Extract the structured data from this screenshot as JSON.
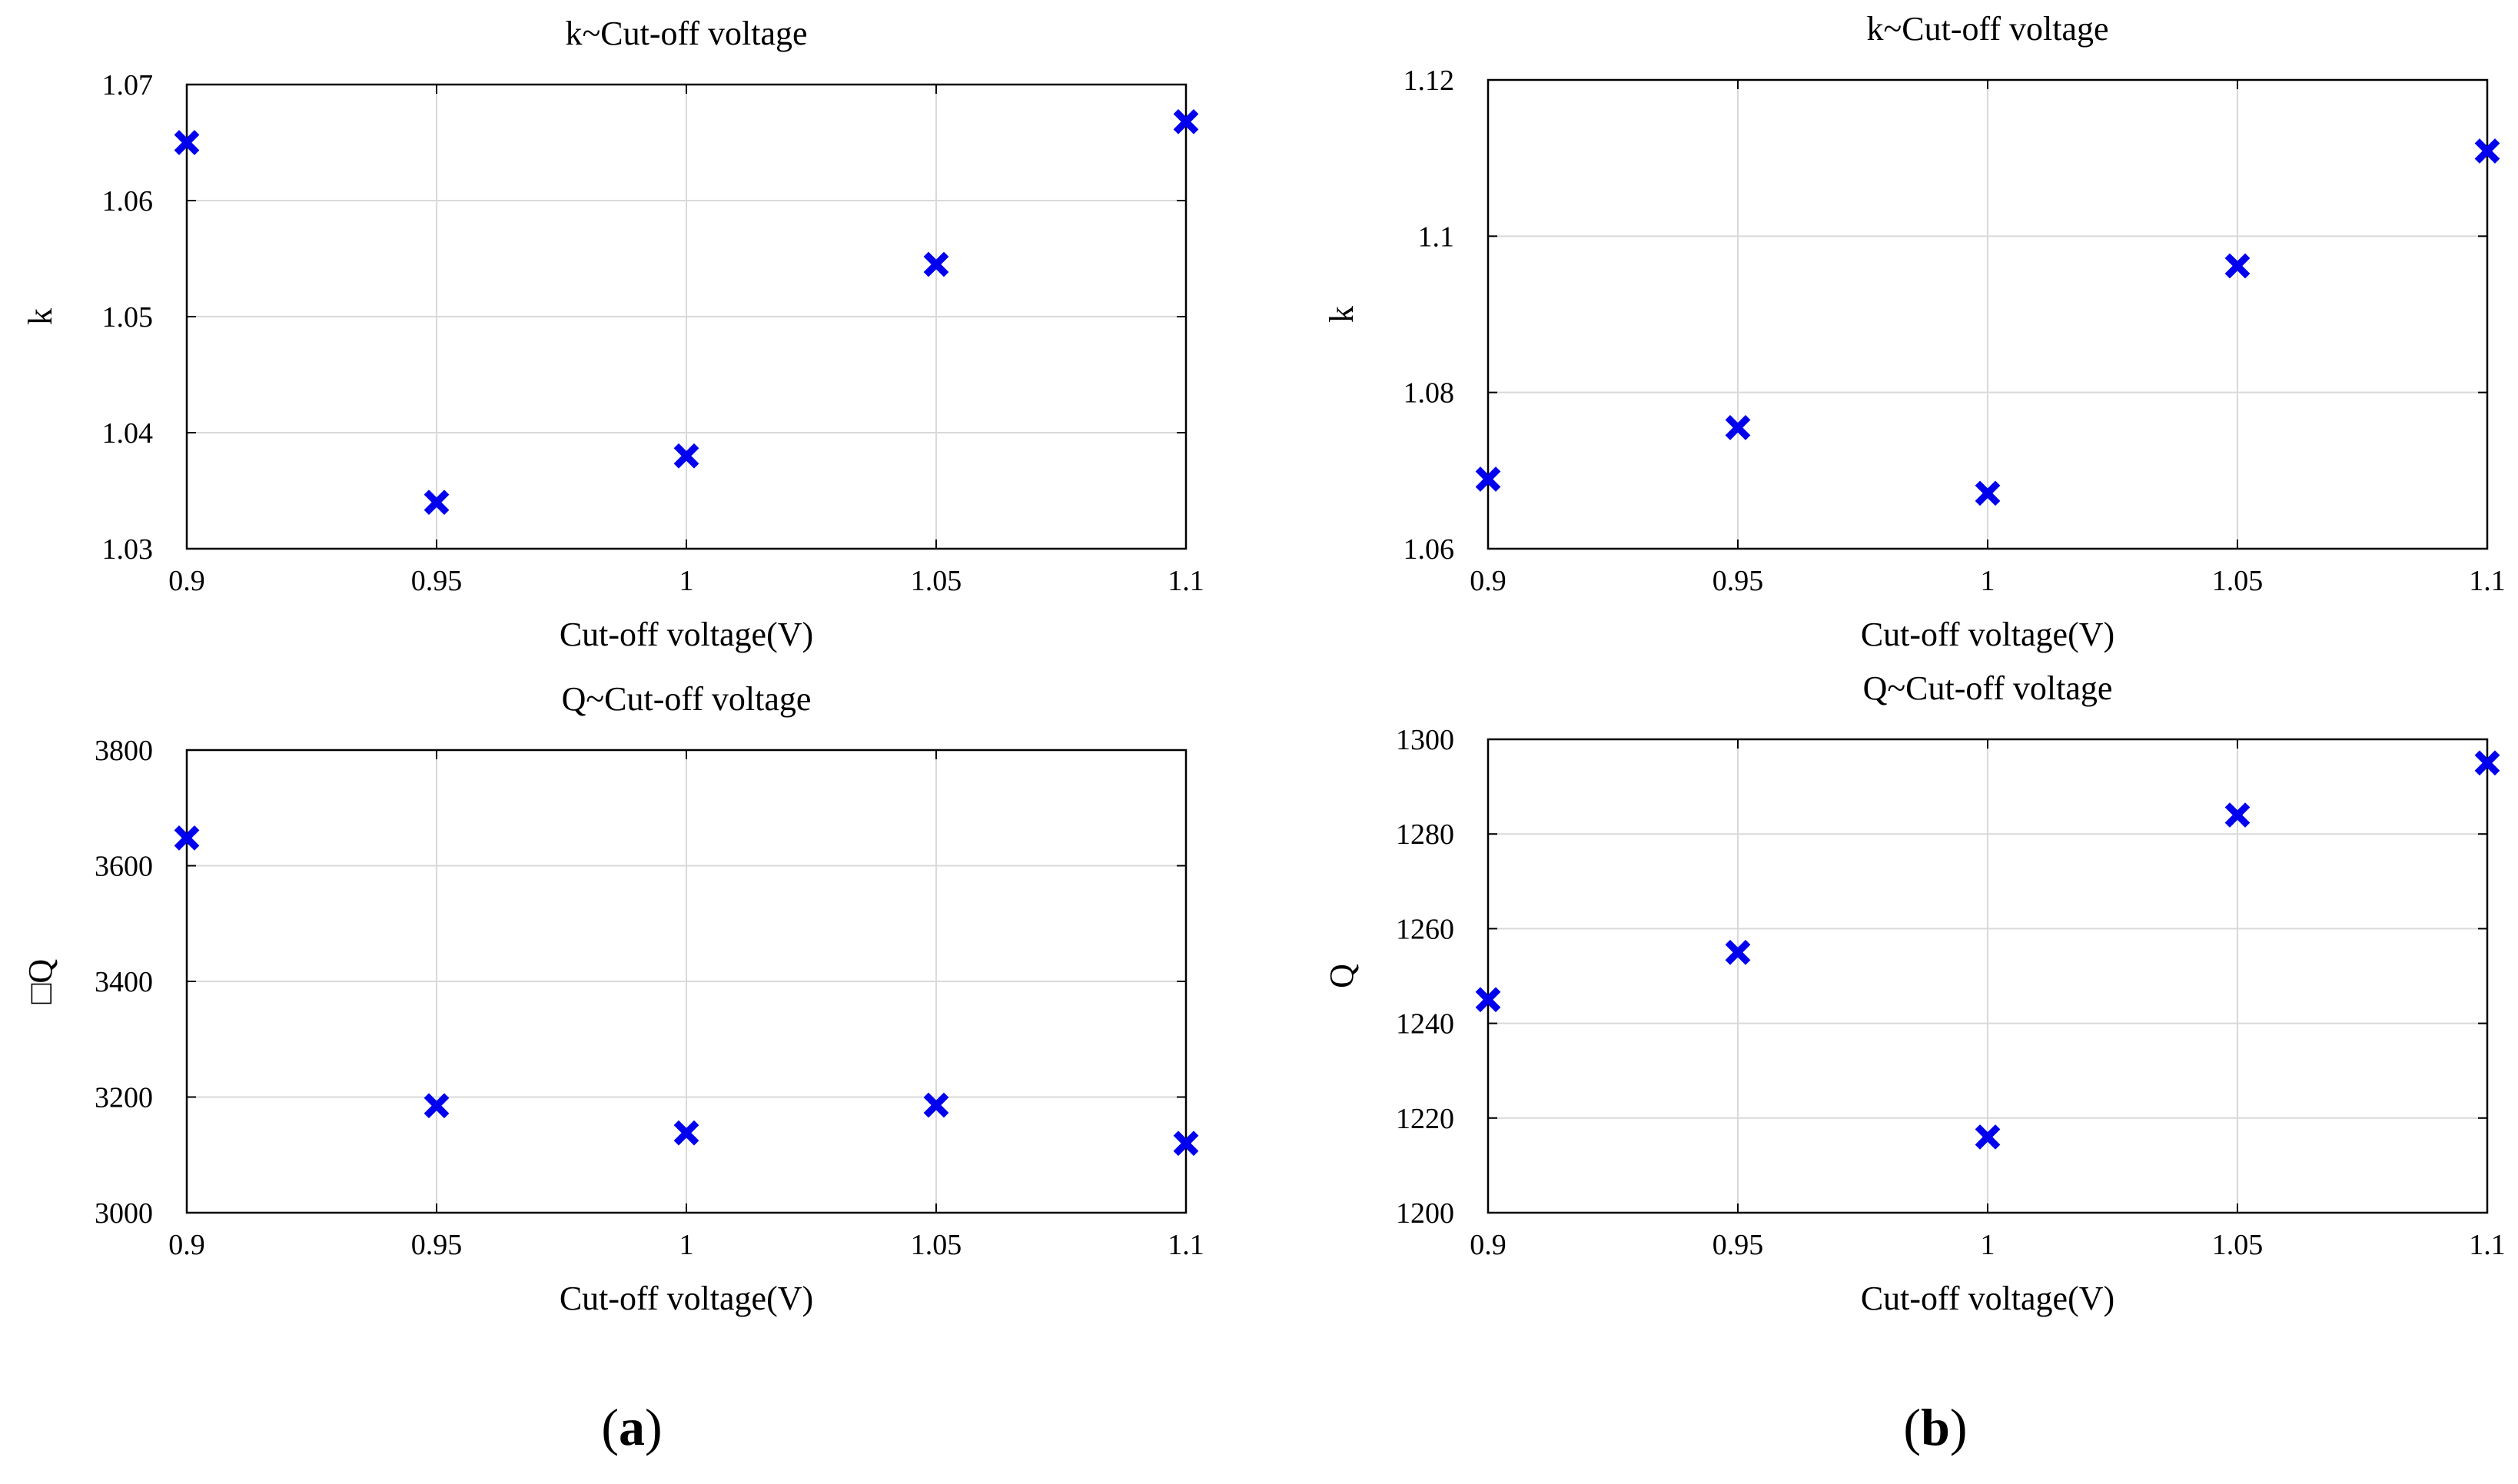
{
  "figure": {
    "panel_labels": [
      {
        "open": "(",
        "letter": "a",
        "close": ")"
      },
      {
        "open": "(",
        "letter": "b",
        "close": ")"
      }
    ]
  },
  "colors": {
    "marker": "#0000ee",
    "grid": "#d9d9d9",
    "axes": "#000000",
    "background": "#ffffff"
  },
  "chart_data": [
    {
      "id": "a-top",
      "type": "scatter",
      "title": "k~Cut-off voltage",
      "xlabel": "Cut-off voltage(V)",
      "ylabel": "k",
      "x": [
        0.9,
        0.95,
        1.0,
        1.05,
        1.1
      ],
      "y": [
        1.065,
        1.034,
        1.038,
        1.0545,
        1.0668
      ],
      "xlim": [
        0.9,
        1.1
      ],
      "ylim": [
        1.03,
        1.07
      ],
      "xticks": [
        0.9,
        0.95,
        1.0,
        1.05,
        1.1
      ],
      "xticklabels": [
        "0.9",
        "0.95",
        "1",
        "1.05",
        "1.1"
      ],
      "yticks": [
        1.03,
        1.04,
        1.05,
        1.06,
        1.07
      ],
      "yticklabels": [
        "1.03",
        "1.04",
        "1.05",
        "1.06",
        "1.07"
      ],
      "grid": true,
      "marker": "x"
    },
    {
      "id": "a-bottom",
      "type": "scatter",
      "title": "Q~Cut-off voltage",
      "xlabel": "Cut-off voltage(V)",
      "ylabel": "□Q",
      "x": [
        0.9,
        0.95,
        1.0,
        1.05,
        1.1
      ],
      "y": [
        3648,
        3185,
        3138,
        3186,
        3120
      ],
      "xlim": [
        0.9,
        1.1
      ],
      "ylim": [
        3000,
        3800
      ],
      "xticks": [
        0.9,
        0.95,
        1.0,
        1.05,
        1.1
      ],
      "xticklabels": [
        "0.9",
        "0.95",
        "1",
        "1.05",
        "1.1"
      ],
      "yticks": [
        3000,
        3200,
        3400,
        3600,
        3800
      ],
      "yticklabels": [
        "3000",
        "3200",
        "3400",
        "3600",
        "3800"
      ],
      "grid": true,
      "marker": "x"
    },
    {
      "id": "b-top",
      "type": "scatter",
      "title": "k~Cut-off voltage",
      "xlabel": "Cut-off voltage(V)",
      "ylabel": "k",
      "x": [
        0.9,
        0.95,
        1.0,
        1.05,
        1.1
      ],
      "y": [
        1.0689,
        1.0755,
        1.0671,
        1.0962,
        1.1109
      ],
      "xlim": [
        0.9,
        1.1
      ],
      "ylim": [
        1.06,
        1.12
      ],
      "xticks": [
        0.9,
        0.95,
        1.0,
        1.05,
        1.1
      ],
      "xticklabels": [
        "0.9",
        "0.95",
        "1",
        "1.05",
        "1.1"
      ],
      "yticks": [
        1.06,
        1.08,
        1.1,
        1.12
      ],
      "yticklabels": [
        "1.06",
        "1.08",
        "1.1",
        "1.12"
      ],
      "grid": true,
      "marker": "x"
    },
    {
      "id": "b-bottom",
      "type": "scatter",
      "title": "Q~Cut-off voltage",
      "xlabel": "Cut-off voltage(V)",
      "ylabel": "Q",
      "x": [
        0.9,
        0.95,
        1.0,
        1.05,
        1.1
      ],
      "y": [
        1245,
        1255,
        1216,
        1284,
        1295
      ],
      "xlim": [
        0.9,
        1.1
      ],
      "ylim": [
        1200,
        1300
      ],
      "xticks": [
        0.9,
        0.95,
        1.0,
        1.05,
        1.1
      ],
      "xticklabels": [
        "0.9",
        "0.95",
        "1",
        "1.05",
        "1.1"
      ],
      "yticks": [
        1200,
        1220,
        1240,
        1260,
        1280,
        1300
      ],
      "yticklabels": [
        "1200",
        "1220",
        "1240",
        "1260",
        "1280",
        "1300"
      ],
      "grid": true,
      "marker": "x"
    }
  ]
}
